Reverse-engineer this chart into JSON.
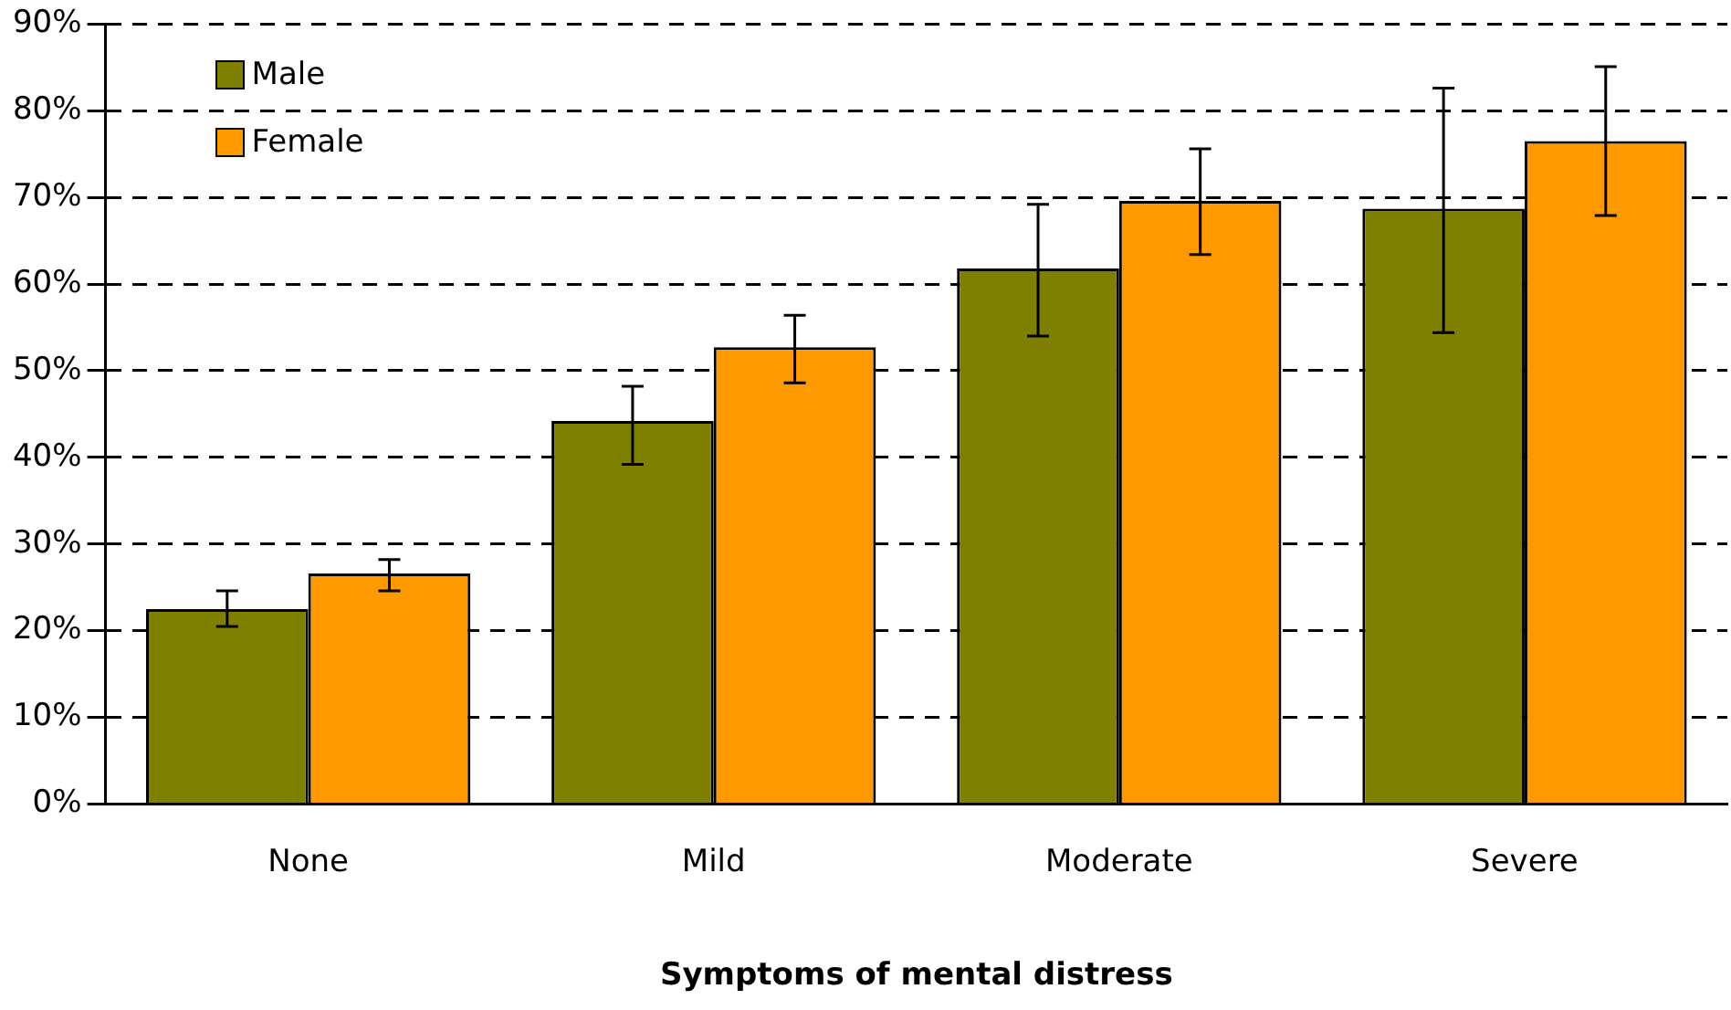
{
  "chart_data": {
    "type": "bar",
    "xlabel": "Symptoms of mental distress",
    "categories": [
      "None",
      "Mild",
      "Moderate",
      "Severe"
    ],
    "series": [
      {
        "name": "Male",
        "color": "#808000",
        "values": [
          22.5,
          44.2,
          61.8,
          68.7
        ],
        "errors": [
          [
            20.5,
            24.6
          ],
          [
            39.2,
            48.2
          ],
          [
            54.0,
            69.2
          ],
          [
            54.4,
            82.6
          ]
        ]
      },
      {
        "name": "Female",
        "color": "#ff9900",
        "values": [
          26.6,
          52.7,
          69.6,
          76.5
        ],
        "errors": [
          [
            24.6,
            28.2
          ],
          [
            48.6,
            56.4
          ],
          [
            63.4,
            75.6
          ],
          [
            67.9,
            85.1
          ]
        ]
      }
    ],
    "ylim": [
      0,
      90
    ],
    "yticks": [
      {
        "value": 0,
        "label": "0%"
      },
      {
        "value": 10,
        "label": "10%"
      },
      {
        "value": 20,
        "label": "20%"
      },
      {
        "value": 30,
        "label": "30%"
      },
      {
        "value": 40,
        "label": "40%"
      },
      {
        "value": 50,
        "label": "50%"
      },
      {
        "value": 60,
        "label": "60%"
      },
      {
        "value": 70,
        "label": "70%"
      },
      {
        "value": 80,
        "label": "80%"
      },
      {
        "value": 90,
        "label": "90%"
      }
    ],
    "grid": "y",
    "line_style": "dashed",
    "legend": "top left"
  }
}
